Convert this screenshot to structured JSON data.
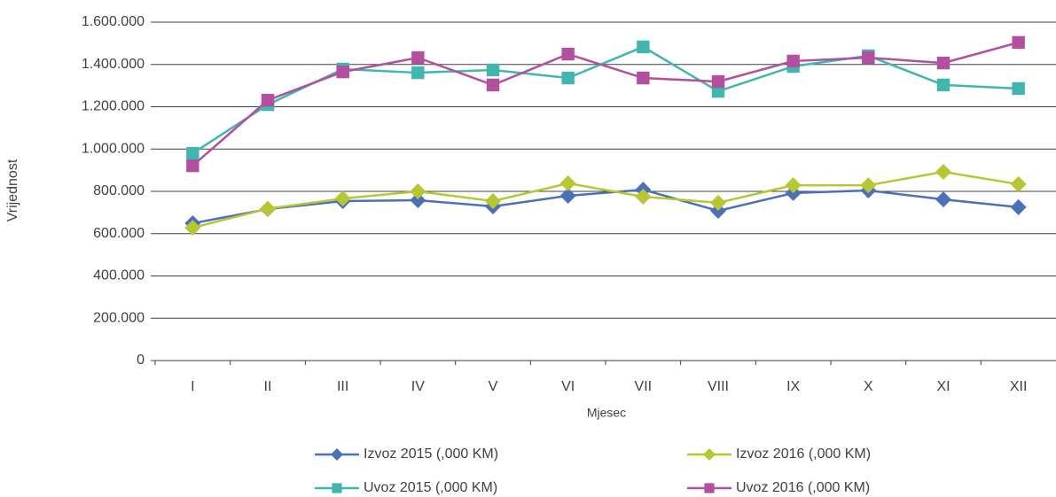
{
  "chart_data": {
    "type": "line",
    "y_label": "Vrijednost",
    "x_label": "Mjesec",
    "categories": [
      "I",
      "II",
      "III",
      "IV",
      "V",
      "VI",
      "VII",
      "VIII",
      "IX",
      "X",
      "XI",
      "XII"
    ],
    "series": [
      {
        "name": "Izvoz 2015 (,000 KM)",
        "color": "#4a70b8",
        "marker": "diamond",
        "values": [
          649000,
          716000,
          754000,
          758000,
          729000,
          779000,
          808000,
          708000,
          792000,
          804000,
          762000,
          725000
        ]
      },
      {
        "name": "Izvoz 2016 (,000 KM)",
        "color": "#b8c634",
        "marker": "diamond",
        "values": [
          628000,
          718000,
          766000,
          800000,
          754000,
          838000,
          775000,
          746000,
          829000,
          829000,
          892000,
          834000
        ]
      },
      {
        "name": "Uvoz 2015 (,000 KM)",
        "color": "#3fb6ae",
        "marker": "square",
        "values": [
          980000,
          1210000,
          1378000,
          1361000,
          1374000,
          1336000,
          1483000,
          1273000,
          1391000,
          1441000,
          1303000,
          1286000
        ]
      },
      {
        "name": "Uvoz 2016 (,000 KM)",
        "color": "#b24f9f",
        "marker": "square",
        "values": [
          921000,
          1231000,
          1365000,
          1432000,
          1303000,
          1449000,
          1336000,
          1319000,
          1416000,
          1432000,
          1407000,
          1504000
        ]
      }
    ],
    "ylim": [
      0,
      1600000
    ],
    "yticks": [
      0,
      {
        "value": 200000,
        "label": "200.000"
      },
      {
        "value": 400000,
        "label": "400.000"
      },
      {
        "value": 600000,
        "label": "600.000"
      },
      {
        "value": 800000,
        "label": "800.000"
      },
      {
        "value": 1000000,
        "label": "1.000.000"
      },
      {
        "value": 1200000,
        "label": "1.200.000"
      },
      {
        "value": 1400000,
        "label": "1.400.000"
      },
      {
        "value": 1600000,
        "label": "1.600.000"
      }
    ],
    "grid": true,
    "legend": "bottom"
  }
}
